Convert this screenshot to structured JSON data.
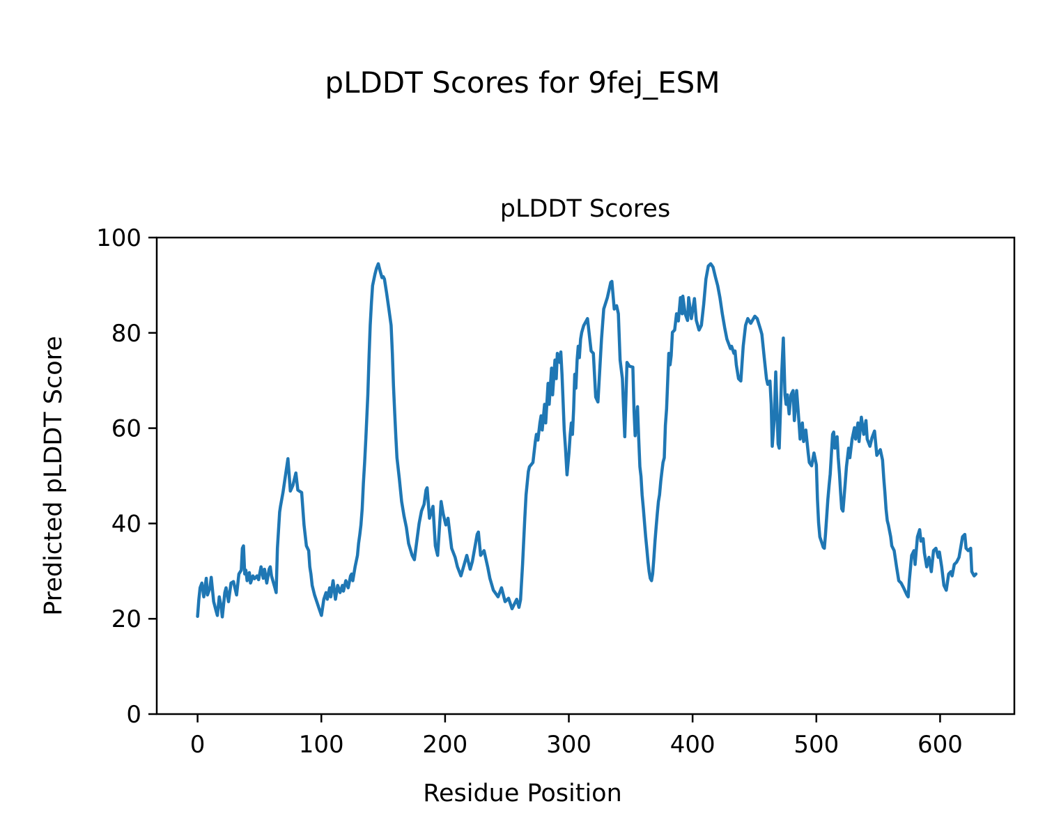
{
  "figure": {
    "suptitle": "pLDDT Scores for 9fej_ESM",
    "axes_title": "pLDDT Scores",
    "xlabel": "Residue Position",
    "ylabel": "Predicted pLDDT Score"
  },
  "chart_data": {
    "type": "line",
    "title": "pLDDT Scores",
    "xlabel": "Residue Position",
    "ylabel": "Predicted pLDDT Score",
    "x_ticks": [
      0,
      100,
      200,
      300,
      400,
      500,
      600
    ],
    "y_ticks": [
      0,
      20,
      40,
      60,
      80,
      100
    ],
    "xlim": [
      -33,
      660
    ],
    "ylim": [
      0,
      100
    ],
    "grid": false,
    "legend": "none",
    "line_color": "#1f77b4",
    "series_name": "pLDDT",
    "points": [
      [
        0,
        20.5
      ],
      [
        1,
        24
      ],
      [
        2,
        26.5
      ],
      [
        3.5,
        27.5
      ],
      [
        5,
        24.6
      ],
      [
        7,
        28.5
      ],
      [
        8,
        25
      ],
      [
        10,
        26.5
      ],
      [
        11,
        28.7
      ],
      [
        13,
        23.6
      ],
      [
        15,
        21.6
      ],
      [
        16,
        20.7
      ],
      [
        17.5,
        24.6
      ],
      [
        19,
        22.6
      ],
      [
        20,
        20.4
      ],
      [
        22,
        25.5
      ],
      [
        23,
        26.5
      ],
      [
        25,
        23.6
      ],
      [
        27,
        27.5
      ],
      [
        29,
        27.8
      ],
      [
        31.5,
        25
      ],
      [
        33.4,
        29.4
      ],
      [
        35.3,
        30.2
      ],
      [
        36.2,
        34.8
      ],
      [
        37.1,
        35.3
      ],
      [
        38.1,
        29.4
      ],
      [
        39,
        30.2
      ],
      [
        40,
        28
      ],
      [
        41.8,
        29.7
      ],
      [
        42.8,
        27.5
      ],
      [
        44.7,
        29
      ],
      [
        46,
        28.4
      ],
      [
        48,
        29
      ],
      [
        49.3,
        28.2
      ],
      [
        51.3,
        30.9
      ],
      [
        53.1,
        28.5
      ],
      [
        54.1,
        30.4
      ],
      [
        55.9,
        27.5
      ],
      [
        57.8,
        30.4
      ],
      [
        58.7,
        30.9
      ],
      [
        59.7,
        29
      ],
      [
        62.5,
        26.5
      ],
      [
        63.5,
        25.5
      ],
      [
        64.5,
        34.8
      ],
      [
        66.3,
        42.4
      ],
      [
        67,
        43.6
      ],
      [
        69,
        46.5
      ],
      [
        71,
        50
      ],
      [
        73,
        53.6
      ],
      [
        75,
        46.8
      ],
      [
        77,
        48
      ],
      [
        79.4,
        50.6
      ],
      [
        81,
        47
      ],
      [
        84.1,
        46.5
      ],
      [
        86,
        39.7
      ],
      [
        87.9,
        35.3
      ],
      [
        89.8,
        34.3
      ],
      [
        90.7,
        30.9
      ],
      [
        91.6,
        29.4
      ],
      [
        92.6,
        27
      ],
      [
        94.5,
        25
      ],
      [
        96.3,
        23.6
      ],
      [
        98.2,
        22.1
      ],
      [
        100.1,
        20.7
      ],
      [
        102,
        24.1
      ],
      [
        103.8,
        25.5
      ],
      [
        104.8,
        24.1
      ],
      [
        106.7,
        26.5
      ],
      [
        107.6,
        24.6
      ],
      [
        109.5,
        28
      ],
      [
        111.4,
        24.1
      ],
      [
        113.2,
        27
      ],
      [
        115.1,
        25.5
      ],
      [
        117,
        27
      ],
      [
        117.9,
        25.8
      ],
      [
        119.8,
        28
      ],
      [
        121.7,
        26.5
      ],
      [
        123.6,
        29
      ],
      [
        124.5,
        29.4
      ],
      [
        125.4,
        28
      ],
      [
        127.3,
        30.9
      ],
      [
        129.2,
        33.3
      ],
      [
        130.1,
        35.8
      ],
      [
        131.1,
        37.7
      ],
      [
        132,
        39.7
      ],
      [
        133,
        43.1
      ],
      [
        134,
        48.4
      ],
      [
        135,
        52.8
      ],
      [
        136,
        58
      ],
      [
        137.6,
        67
      ],
      [
        138.6,
        75.2
      ],
      [
        139.5,
        81.6
      ],
      [
        140.5,
        86.4
      ],
      [
        141.4,
        89.9
      ],
      [
        143.3,
        92.3
      ],
      [
        144.5,
        93.5
      ],
      [
        146,
        94.5
      ],
      [
        147.5,
        93
      ],
      [
        149,
        91.6
      ],
      [
        150,
        91.8
      ],
      [
        151,
        91.3
      ],
      [
        152.7,
        88.4
      ],
      [
        154.6,
        85
      ],
      [
        156.4,
        81.6
      ],
      [
        157.4,
        75.7
      ],
      [
        158.3,
        68.9
      ],
      [
        159.3,
        63.1
      ],
      [
        160.2,
        58.2
      ],
      [
        161.1,
        53.8
      ],
      [
        163,
        49.4
      ],
      [
        164.9,
        44.6
      ],
      [
        166.8,
        41.6
      ],
      [
        168.7,
        39.2
      ],
      [
        170.5,
        35.8
      ],
      [
        173.4,
        33.3
      ],
      [
        175.2,
        32.4
      ],
      [
        177,
        36
      ],
      [
        179,
        40
      ],
      [
        180.9,
        42.6
      ],
      [
        183,
        44
      ],
      [
        184.6,
        47
      ],
      [
        185.5,
        47.5
      ],
      [
        187.4,
        41.1
      ],
      [
        190.2,
        43.6
      ],
      [
        192.1,
        35.3
      ],
      [
        194,
        33.3
      ],
      [
        196.8,
        44.6
      ],
      [
        198.5,
        42
      ],
      [
        200.6,
        39.7
      ],
      [
        202.4,
        41.1
      ],
      [
        205.3,
        34.8
      ],
      [
        208.1,
        32.9
      ],
      [
        210,
        30.9
      ],
      [
        212.8,
        29
      ],
      [
        215,
        31
      ],
      [
        217.5,
        33.3
      ],
      [
        220.3,
        30.4
      ],
      [
        222,
        32
      ],
      [
        225.9,
        37.7
      ],
      [
        226.9,
        38.2
      ],
      [
        228.7,
        33.3
      ],
      [
        231.5,
        34.3
      ],
      [
        234.4,
        30.9
      ],
      [
        236.2,
        28.5
      ],
      [
        239,
        26
      ],
      [
        242.8,
        24.6
      ],
      [
        245.6,
        26.5
      ],
      [
        248.5,
        23.6
      ],
      [
        251.3,
        24.3
      ],
      [
        254.1,
        22.1
      ],
      [
        257.9,
        24.1
      ],
      [
        259.7,
        22.4
      ],
      [
        261,
        24
      ],
      [
        262.6,
        31.4
      ],
      [
        263.5,
        36.3
      ],
      [
        264.4,
        41.1
      ],
      [
        265.4,
        46
      ],
      [
        267.3,
        50.9
      ],
      [
        268.2,
        51.9
      ],
      [
        271,
        52.8
      ],
      [
        272.9,
        57.2
      ],
      [
        273.8,
        58.7
      ],
      [
        275,
        57.5
      ],
      [
        276.6,
        61.1
      ],
      [
        277.6,
        62.6
      ],
      [
        278.5,
        59.6
      ],
      [
        280.4,
        65
      ],
      [
        281.3,
        61.1
      ],
      [
        283.2,
        69.4
      ],
      [
        284.1,
        65
      ],
      [
        286,
        72.6
      ],
      [
        286.9,
        67
      ],
      [
        288.8,
        74.3
      ],
      [
        289.8,
        70.4
      ],
      [
        290.7,
        75.7
      ],
      [
        292.6,
        73.8
      ],
      [
        293.5,
        76
      ],
      [
        294.5,
        71.3
      ],
      [
        295.4,
        65.5
      ],
      [
        296.3,
        59.6
      ],
      [
        297.3,
        55.8
      ],
      [
        298.5,
        50.2
      ],
      [
        300.1,
        54.8
      ],
      [
        301.1,
        58.7
      ],
      [
        302,
        61.1
      ],
      [
        302.9,
        58.7
      ],
      [
        303.9,
        64
      ],
      [
        304.8,
        71.3
      ],
      [
        305.7,
        68.4
      ],
      [
        306.7,
        74.3
      ],
      [
        307.6,
        77.2
      ],
      [
        308.5,
        74.8
      ],
      [
        309.5,
        78.7
      ],
      [
        310.4,
        80.1
      ],
      [
        312,
        81.5
      ],
      [
        315.1,
        83
      ],
      [
        318,
        76.2
      ],
      [
        319.8,
        75.7
      ],
      [
        321.7,
        66.5
      ],
      [
        323.5,
        65.5
      ],
      [
        326.4,
        78.7
      ],
      [
        328.2,
        85
      ],
      [
        331.1,
        87.4
      ],
      [
        333.9,
        90.6
      ],
      [
        334.8,
        90.8
      ],
      [
        336.7,
        85
      ],
      [
        338.6,
        85.7
      ],
      [
        340,
        84
      ],
      [
        341.4,
        74.3
      ],
      [
        343.3,
        70.4
      ],
      [
        344.2,
        64.5
      ],
      [
        345.2,
        58.2
      ],
      [
        347,
        73.8
      ],
      [
        349,
        73
      ],
      [
        351.7,
        72.8
      ],
      [
        352.7,
        63.6
      ],
      [
        353.6,
        58.4
      ],
      [
        355.5,
        64.5
      ],
      [
        356.4,
        58.2
      ],
      [
        357.4,
        51.9
      ],
      [
        358.3,
        49.9
      ],
      [
        359.2,
        46
      ],
      [
        360.2,
        43.1
      ],
      [
        361.1,
        40.2
      ],
      [
        362.1,
        37.2
      ],
      [
        363,
        34.8
      ],
      [
        364,
        31.9
      ],
      [
        364.9,
        29.9
      ],
      [
        365.8,
        28.5
      ],
      [
        366.8,
        28
      ],
      [
        367.7,
        29.4
      ],
      [
        368.6,
        32.4
      ],
      [
        369.6,
        36.3
      ],
      [
        370.5,
        39.2
      ],
      [
        371.5,
        42.1
      ],
      [
        372.4,
        44.6
      ],
      [
        373.3,
        46
      ],
      [
        374.3,
        48.9
      ],
      [
        375.2,
        50.9
      ],
      [
        376.1,
        52.8
      ],
      [
        377.1,
        53.8
      ],
      [
        378,
        60.6
      ],
      [
        379,
        64
      ],
      [
        380.8,
        75.7
      ],
      [
        381.8,
        73.3
      ],
      [
        382.7,
        75.2
      ],
      [
        383.7,
        80.1
      ],
      [
        385.5,
        80.6
      ],
      [
        387,
        84
      ],
      [
        388.5,
        82.5
      ],
      [
        390.2,
        87.4
      ],
      [
        391.5,
        84
      ],
      [
        392.1,
        87.7
      ],
      [
        394,
        84
      ],
      [
        395.9,
        82.6
      ],
      [
        396.8,
        87.4
      ],
      [
        399,
        83
      ],
      [
        401.5,
        87.2
      ],
      [
        403,
        82.6
      ],
      [
        405.2,
        80.6
      ],
      [
        407.1,
        81.6
      ],
      [
        409,
        86
      ],
      [
        410.8,
        91.3
      ],
      [
        412.7,
        94
      ],
      [
        414.6,
        94.5
      ],
      [
        416.5,
        93.8
      ],
      [
        418.4,
        91.8
      ],
      [
        420.3,
        89.9
      ],
      [
        422.1,
        87.4
      ],
      [
        424,
        84
      ],
      [
        425.9,
        81.1
      ],
      [
        427.7,
        78.7
      ],
      [
        430.6,
        76.7
      ],
      [
        431.5,
        77.2
      ],
      [
        433.4,
        75.7
      ],
      [
        434.3,
        76.2
      ],
      [
        435.3,
        73.3
      ],
      [
        437.1,
        70.4
      ],
      [
        439,
        69.9
      ],
      [
        440.9,
        77.2
      ],
      [
        442.8,
        81.6
      ],
      [
        444.6,
        83
      ],
      [
        447,
        82
      ],
      [
        450.3,
        83.5
      ],
      [
        452.2,
        83
      ],
      [
        455,
        80.6
      ],
      [
        456,
        79.7
      ],
      [
        457.9,
        74.8
      ],
      [
        459.7,
        70.4
      ],
      [
        460.7,
        69.2
      ],
      [
        462.5,
        69.9
      ],
      [
        463.5,
        65
      ],
      [
        464.4,
        56.2
      ],
      [
        466,
        62
      ],
      [
        467.2,
        71.8
      ],
      [
        468.2,
        64
      ],
      [
        469.1,
        56.7
      ],
      [
        470,
        55.8
      ],
      [
        471.9,
        70.9
      ],
      [
        473.3,
        78.9
      ],
      [
        474.7,
        67
      ],
      [
        475.6,
        65
      ],
      [
        476.6,
        67
      ],
      [
        478,
        63
      ],
      [
        479.5,
        67
      ],
      [
        481.2,
        67.9
      ],
      [
        482.2,
        61.6
      ],
      [
        484.1,
        67.9
      ],
      [
        485.9,
        61.6
      ],
      [
        486.9,
        57.7
      ],
      [
        488.7,
        61.1
      ],
      [
        489.7,
        57.2
      ],
      [
        491.5,
        59.6
      ],
      [
        493.4,
        54.8
      ],
      [
        494.3,
        52.8
      ],
      [
        496.2,
        52.1
      ],
      [
        498.1,
        54.8
      ],
      [
        500,
        52.3
      ],
      [
        500.9,
        45
      ],
      [
        501.8,
        40.2
      ],
      [
        502.8,
        37.2
      ],
      [
        504.6,
        35.8
      ],
      [
        505.6,
        35
      ],
      [
        506.5,
        34.8
      ],
      [
        507.4,
        37.7
      ],
      [
        509.3,
        45
      ],
      [
        510.3,
        48
      ],
      [
        511.2,
        50.4
      ],
      [
        513.1,
        58.7
      ],
      [
        514,
        59.2
      ],
      [
        514.9,
        55.8
      ],
      [
        516.8,
        58.2
      ],
      [
        517.7,
        53.8
      ],
      [
        518.7,
        50.4
      ],
      [
        519.6,
        46.5
      ],
      [
        520.5,
        43.1
      ],
      [
        521.5,
        42.6
      ],
      [
        523.3,
        48.4
      ],
      [
        524.3,
        51.9
      ],
      [
        526.1,
        55.8
      ],
      [
        527.1,
        53.8
      ],
      [
        528.9,
        57.7
      ],
      [
        530.8,
        60.1
      ],
      [
        531.7,
        57.7
      ],
      [
        533.6,
        61.1
      ],
      [
        534.5,
        57.2
      ],
      [
        536.4,
        62.3
      ],
      [
        538.3,
        58.7
      ],
      [
        540.1,
        61.6
      ],
      [
        541.1,
        57.7
      ],
      [
        543.3,
        56.2
      ],
      [
        545,
        58
      ],
      [
        547,
        59.4
      ],
      [
        548.9,
        54.3
      ],
      [
        551.7,
        55.5
      ],
      [
        553.5,
        53.3
      ],
      [
        554.5,
        49.4
      ],
      [
        555.4,
        46.5
      ],
      [
        556.3,
        43.1
      ],
      [
        557.3,
        40.6
      ],
      [
        558.2,
        39.7
      ],
      [
        560.1,
        37.2
      ],
      [
        561,
        35.3
      ],
      [
        562.9,
        34.3
      ],
      [
        564.8,
        30.9
      ],
      [
        566.6,
        28
      ],
      [
        568.5,
        27.5
      ],
      [
        570.5,
        26.5
      ],
      [
        573.2,
        25
      ],
      [
        574.2,
        24.6
      ],
      [
        575.1,
        28
      ],
      [
        577,
        33.3
      ],
      [
        578.9,
        34.3
      ],
      [
        579.8,
        31.4
      ],
      [
        581.7,
        37.2
      ],
      [
        583.5,
        38.7
      ],
      [
        584.5,
        36.3
      ],
      [
        586.3,
        36.8
      ],
      [
        587.3,
        33.8
      ],
      [
        589.2,
        30.9
      ],
      [
        591,
        32.9
      ],
      [
        592.9,
        29.9
      ],
      [
        594.7,
        34.3
      ],
      [
        596.6,
        34.8
      ],
      [
        598.5,
        32.9
      ],
      [
        599.4,
        34
      ],
      [
        601.3,
        30.9
      ],
      [
        603.1,
        27
      ],
      [
        605,
        26
      ],
      [
        606.9,
        29.4
      ],
      [
        608.7,
        29.9
      ],
      [
        609.7,
        29
      ],
      [
        611.5,
        31.4
      ],
      [
        613.4,
        31.9
      ],
      [
        615.3,
        32.9
      ],
      [
        618.1,
        37.2
      ],
      [
        620,
        37.7
      ],
      [
        621,
        34.8
      ],
      [
        622.8,
        34.3
      ],
      [
        624.7,
        34.8
      ],
      [
        625.6,
        29.9
      ],
      [
        627.5,
        29
      ],
      [
        629,
        29.4
      ]
    ]
  }
}
